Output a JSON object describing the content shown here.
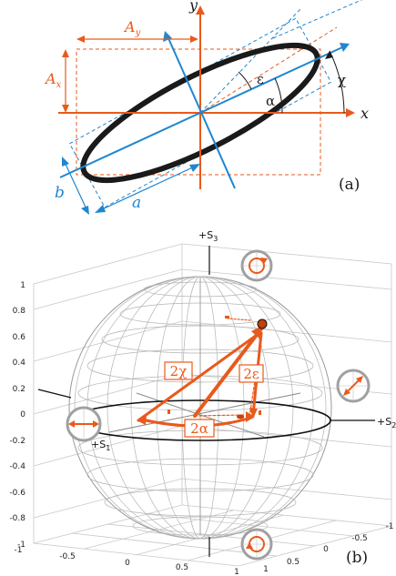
{
  "panel_a": {
    "axis_x": "x",
    "axis_y": "y",
    "label_Ay": "A",
    "label_Ay_sub": "y",
    "label_Ax": "A",
    "label_Ax_sub": "x",
    "label_a": "a",
    "label_b": "b",
    "label_epsilon": "ε",
    "label_alpha": "α",
    "label_chi": "χ",
    "panel_label": "(a)",
    "colors": {
      "orange": "#e85a1b",
      "blue": "#1f86d1",
      "ellipse": "#1a1a1a"
    }
  },
  "panel_b": {
    "axis_s3": "+S",
    "axis_s3_sub": "3",
    "axis_s1": "+S",
    "axis_s1_sub": "1",
    "axis_s2": "+S",
    "axis_s2_sub": "2",
    "label_2chi": "2χ",
    "label_2eps": "2ε",
    "label_2alpha": "2α",
    "panel_label": "(b)",
    "z_ticks": [
      "1",
      "0.8",
      "0.6",
      "0.4",
      "0.2",
      "0",
      "-0.2",
      "-0.4",
      "-0.6",
      "-0.8",
      "-1"
    ],
    "x_ticks": [
      "-1",
      "-0.5",
      "0",
      "0.5",
      "1"
    ],
    "y_ticks": [
      "1",
      "0.5",
      "0",
      "-0.5",
      "-1"
    ],
    "colors": {
      "orange": "#e85a1b",
      "grid": "#9a9a9a",
      "equator": "#111111"
    }
  }
}
